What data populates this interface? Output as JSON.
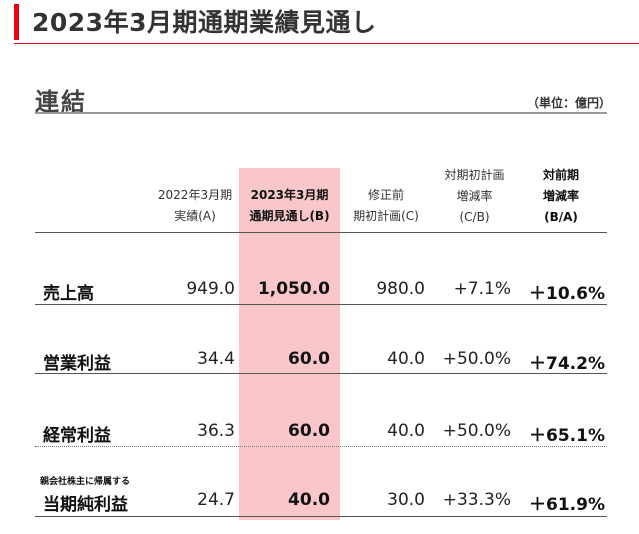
{
  "page": {
    "title": "2023年3月期通期業績見通し",
    "section": "連結",
    "unit": "（単位：億円）"
  },
  "headers": {
    "col_a": [
      "2022年3月期",
      "実績(A)"
    ],
    "col_b": [
      "2023年3月期",
      "通期見通し(B)"
    ],
    "col_c": [
      "修正前",
      "期初計画(C)"
    ],
    "col_d": [
      "対期初計画",
      "増減率",
      "(C/B)"
    ],
    "col_e": [
      "対前期",
      "増減率",
      "(B/A)"
    ]
  },
  "rows": [
    {
      "label": "売上高",
      "a": "949.0",
      "b": "1,050.0",
      "c": "980.0",
      "d": "+7.1%",
      "e": "＋10.6%"
    },
    {
      "label": "営業利益",
      "a": "34.4",
      "b": "60.0",
      "c": "40.0",
      "d": "+50.0%",
      "e": "＋74.2%"
    },
    {
      "label": "経常利益",
      "a": "36.3",
      "b": "60.0",
      "c": "40.0",
      "d": "+50.0%",
      "e": "＋65.1%"
    },
    {
      "sublabel": "親会社株主に帰属する",
      "label": "当期純利益",
      "a": "24.7",
      "b": "40.0",
      "c": "30.0",
      "d": "+33.3%",
      "e": "＋61.9%"
    }
  ],
  "colors": {
    "accent": "#e60012",
    "highlight": "#f9c7ca"
  }
}
